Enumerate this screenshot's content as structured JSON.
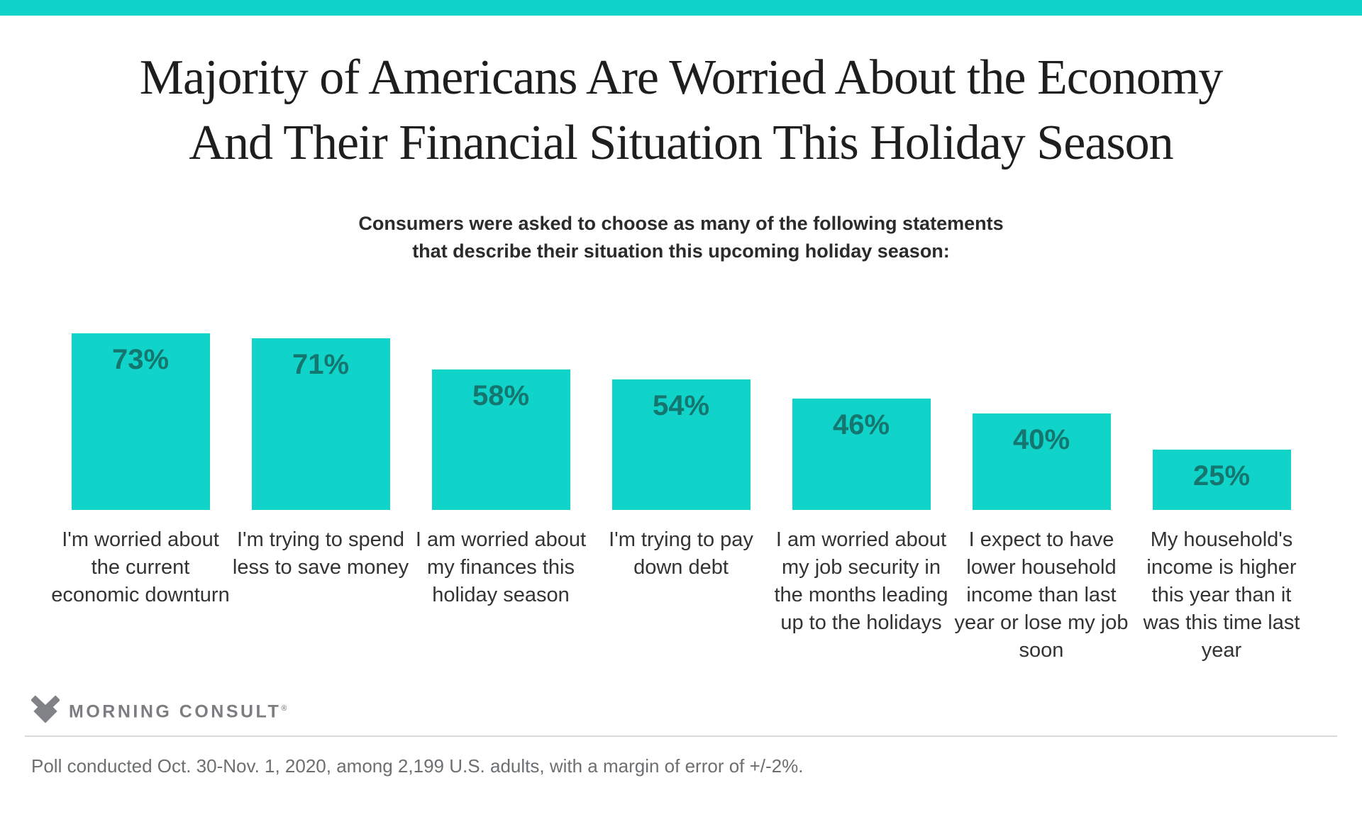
{
  "colors": {
    "accent": "#10d3c9",
    "bar_value_label": "#15756F",
    "title_text": "#1e1e1e",
    "category_text": "#333333",
    "footer_text": "#6c6f71",
    "logo_gray": "#7b7d80"
  },
  "header": {
    "title_line1": "Majority of Americans Are Worried About the Economy",
    "title_line2": "And Their Financial Situation This Holiday Season",
    "subtitle_line1": "Consumers were asked to choose as many of the following statements",
    "subtitle_line2": "that describe their situation this upcoming holiday season:"
  },
  "chart_data": {
    "type": "bar",
    "title": "Majority of Americans Are Worried About the Economy And Their Financial Situation This Holiday Season",
    "subtitle": "Consumers were asked to choose as many of the following statements that describe their situation this upcoming holiday season:",
    "categories": [
      "I'm worried about the current economic downturn",
      "I'm trying to spend less to save money",
      "I am worried about my finances this holiday season",
      "I'm trying to pay down debt",
      "I am worried about my job security in the months leading up to the holidays",
      "I expect to have lower household income than last year or lose my job soon",
      "My household's income is higher this year than it was this time last year"
    ],
    "values": [
      73,
      71,
      58,
      54,
      46,
      40,
      25
    ],
    "value_labels": [
      "73%",
      "71%",
      "58%",
      "54%",
      "46%",
      "40%",
      "25%"
    ],
    "unit": "percent of U.S. adults",
    "xlabel": "",
    "ylabel": "",
    "ylim": [
      0,
      100
    ],
    "grid": false,
    "legend": "none",
    "bar_color": "#10d3c9",
    "value_label_position": "inside-top"
  },
  "footer": {
    "brand": "MORNING CONSULT",
    "registered_mark": "®",
    "note": "Poll conducted Oct. 30-Nov. 1, 2020, among 2,199 U.S. adults, with a margin of error of +/-2%."
  }
}
